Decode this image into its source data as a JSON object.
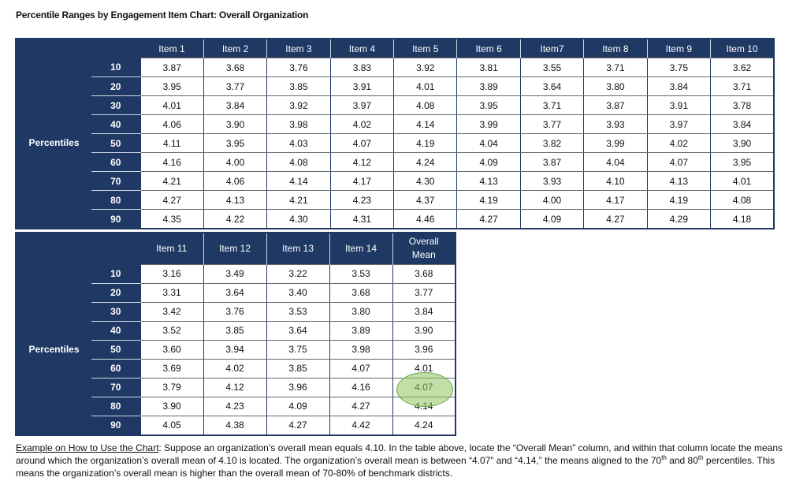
{
  "title": "Percentile Ranges by Engagement Item Chart: Overall Organization",
  "row_group_label": "Percentiles",
  "percentiles": [
    "10",
    "20",
    "30",
    "40",
    "50",
    "60",
    "70",
    "80",
    "90"
  ],
  "table1": {
    "headers": [
      "Item 1",
      "Item 2",
      "Item 3",
      "Item 4",
      "Item 5",
      "Item 6",
      "Item7",
      "Item 8",
      "Item 9",
      "Item 10"
    ],
    "rows": [
      [
        "3.87",
        "3.68",
        "3.76",
        "3.83",
        "3.92",
        "3.81",
        "3.55",
        "3.71",
        "3.75",
        "3.62"
      ],
      [
        "3.95",
        "3.77",
        "3.85",
        "3.91",
        "4.01",
        "3.89",
        "3.64",
        "3.80",
        "3.84",
        "3.71"
      ],
      [
        "4.01",
        "3.84",
        "3.92",
        "3.97",
        "4.08",
        "3.95",
        "3.71",
        "3.87",
        "3.91",
        "3.78"
      ],
      [
        "4.06",
        "3.90",
        "3.98",
        "4.02",
        "4.14",
        "3.99",
        "3.77",
        "3.93",
        "3.97",
        "3.84"
      ],
      [
        "4.11",
        "3.95",
        "4.03",
        "4.07",
        "4.19",
        "4.04",
        "3.82",
        "3.99",
        "4.02",
        "3.90"
      ],
      [
        "4.16",
        "4.00",
        "4.08",
        "4.12",
        "4.24",
        "4.09",
        "3.87",
        "4.04",
        "4.07",
        "3.95"
      ],
      [
        "4.21",
        "4.06",
        "4.14",
        "4.17",
        "4.30",
        "4.13",
        "3.93",
        "4.10",
        "4.13",
        "4.01"
      ],
      [
        "4.27",
        "4.13",
        "4.21",
        "4.23",
        "4.37",
        "4.19",
        "4.00",
        "4.17",
        "4.19",
        "4.08"
      ],
      [
        "4.35",
        "4.22",
        "4.30",
        "4.31",
        "4.46",
        "4.27",
        "4.09",
        "4.27",
        "4.29",
        "4.18"
      ]
    ]
  },
  "table2": {
    "headers": [
      "Item 11",
      "Item 12",
      "Item 13",
      "Item 14",
      "Overall Mean"
    ],
    "rows": [
      [
        "3.16",
        "3.49",
        "3.22",
        "3.53",
        "3.68"
      ],
      [
        "3.31",
        "3.64",
        "3.40",
        "3.68",
        "3.77"
      ],
      [
        "3.42",
        "3.76",
        "3.53",
        "3.80",
        "3.84"
      ],
      [
        "3.52",
        "3.85",
        "3.64",
        "3.89",
        "3.90"
      ],
      [
        "3.60",
        "3.94",
        "3.75",
        "3.98",
        "3.96"
      ],
      [
        "3.69",
        "4.02",
        "3.85",
        "4.07",
        "4.01"
      ],
      [
        "3.79",
        "4.12",
        "3.96",
        "4.16",
        "4.07"
      ],
      [
        "3.90",
        "4.23",
        "4.09",
        "4.27",
        "4.14"
      ],
      [
        "4.05",
        "4.38",
        "4.27",
        "4.42",
        "4.24"
      ]
    ],
    "highlight_color": "#92c460"
  },
  "note": {
    "lead": "Example on How to Use the Chart",
    "p1": ": Suppose an organization’s overall mean equals 4.10. In the table above, locate the “Overall Mean” column, and within that column locate the means around which the organization’s overall mean of 4.10 is located. The organization’s overall mean is between “4.07” and “4.14,” the means aligned to the 70",
    "sup1": "th",
    "p2": " and 80",
    "sup2": "th",
    "p3": " percentiles. This means the organization’s overall mean is higher than the overall mean of 70-80% of benchmark districts."
  },
  "colors": {
    "header_bg": "#1f3864",
    "header_text": "#ffffff"
  }
}
